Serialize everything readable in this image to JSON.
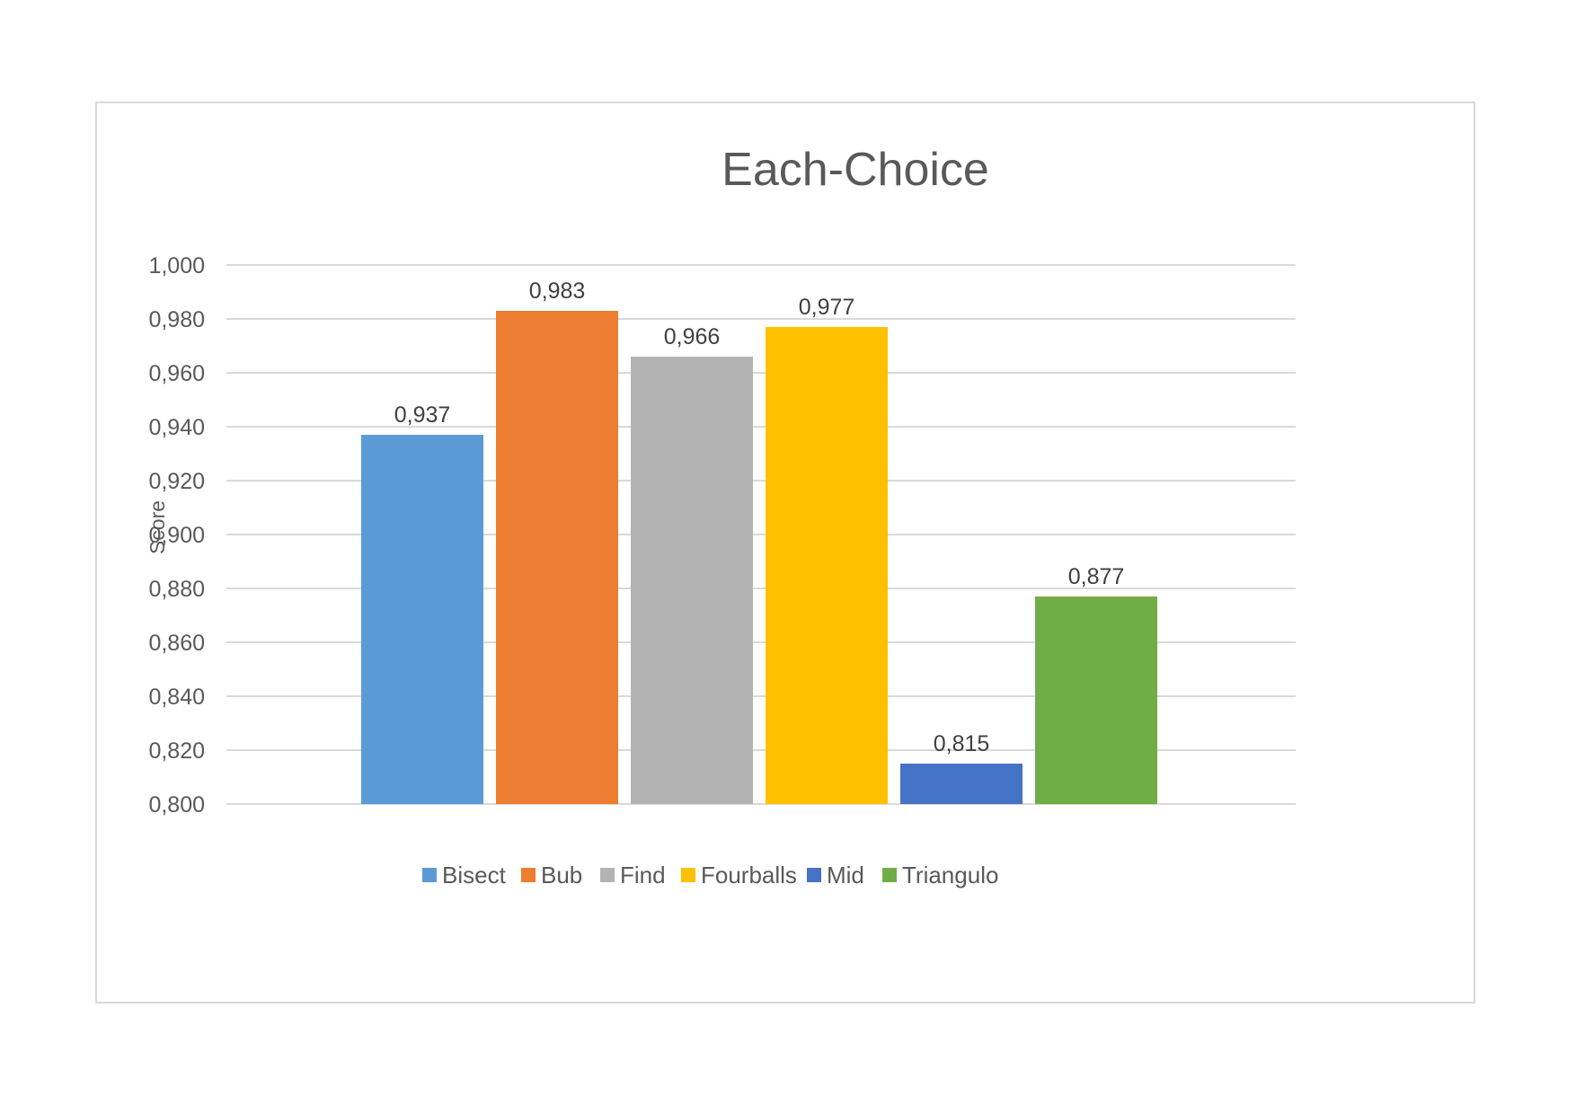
{
  "chart_data": {
    "type": "bar",
    "title": "Each-Choice",
    "xlabel": "",
    "ylabel": "Score",
    "ylim": [
      0.8,
      1.0
    ],
    "ytick_step": 0.02,
    "categories": [
      "Bisect",
      "Bub",
      "Find",
      "Fourballs",
      "Mid",
      "Triangulo"
    ],
    "values": [
      0.937,
      0.983,
      0.966,
      0.977,
      0.815,
      0.877
    ],
    "data_labels": [
      "0,937",
      "0,983",
      "0,966",
      "0,977",
      "0,815",
      "0,877"
    ],
    "yticks": [
      "1,000",
      "0,980",
      "0,960",
      "0,940",
      "0,920",
      "0,900",
      "0,880",
      "0,860",
      "0,840",
      "0,820",
      "0,800"
    ],
    "colors": [
      "#5B9BD5",
      "#ED7D31",
      "#B3B3B3",
      "#FFC000",
      "#4472C4",
      "#70AD47"
    ],
    "grid": true,
    "legend": "bottom"
  }
}
